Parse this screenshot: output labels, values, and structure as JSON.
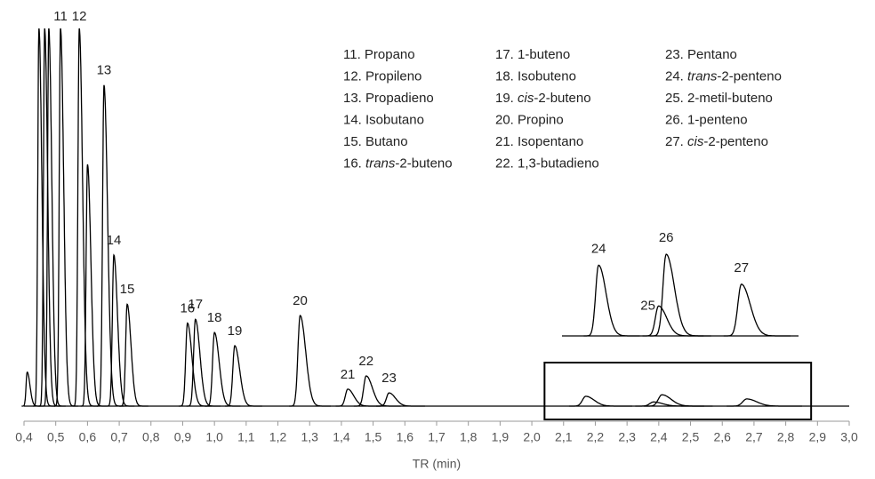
{
  "chart_data": {
    "type": "line",
    "x_label": "TR (min)",
    "color": "#000000",
    "xlim": [
      0.4,
      3.0
    ],
    "ylim": [
      0,
      100
    ],
    "xticks": [
      {
        "value": 0.4,
        "label": "0,4"
      },
      {
        "value": 0.5,
        "label": "0,5"
      },
      {
        "value": 0.6,
        "label": "0,6"
      },
      {
        "value": 0.7,
        "label": "0,7"
      },
      {
        "value": 0.8,
        "label": "0,8"
      },
      {
        "value": 0.9,
        "label": "0,9"
      },
      {
        "value": 1.0,
        "label": "1,0"
      },
      {
        "value": 1.1,
        "label": "1,1"
      },
      {
        "value": 1.2,
        "label": "1,2"
      },
      {
        "value": 1.3,
        "label": "1,3"
      },
      {
        "value": 1.4,
        "label": "1,4"
      },
      {
        "value": 1.5,
        "label": "1,5"
      },
      {
        "value": 1.6,
        "label": "1,6"
      },
      {
        "value": 1.7,
        "label": "1,7"
      },
      {
        "value": 1.8,
        "label": "1,8"
      },
      {
        "value": 1.9,
        "label": "1,9"
      },
      {
        "value": 2.0,
        "label": "2,0"
      },
      {
        "value": 2.1,
        "label": "2,1"
      },
      {
        "value": 2.2,
        "label": "2,2"
      },
      {
        "value": 2.3,
        "label": "2,3"
      },
      {
        "value": 2.4,
        "label": "2,4"
      },
      {
        "value": 2.5,
        "label": "2,5"
      },
      {
        "value": 2.6,
        "label": "2,6"
      },
      {
        "value": 2.7,
        "label": "2,7"
      },
      {
        "value": 2.8,
        "label": "2,8"
      },
      {
        "value": 2.9,
        "label": "2,9"
      },
      {
        "value": 3.0,
        "label": "3,0"
      }
    ],
    "peaks": {
      "x": [
        0.41,
        0.447,
        0.465,
        0.478,
        0.515,
        0.574,
        0.6,
        0.652,
        0.683,
        0.725,
        0.915,
        0.94,
        1.0,
        1.064,
        1.27,
        1.42,
        1.478,
        1.55,
        2.17,
        2.383,
        2.41,
        2.677
      ],
      "values": [
        9,
        100,
        100,
        100,
        100,
        100,
        64,
        85,
        40,
        27,
        22,
        23,
        19.5,
        16,
        24,
        4.5,
        8,
        3.5,
        2.6,
        1.1,
        3.0,
        1.9
      ],
      "labels": [
        null,
        null,
        null,
        null,
        "11",
        "12",
        null,
        "13",
        "14",
        "15",
        "16",
        "17",
        "18",
        "19",
        "20",
        "21",
        "22",
        "23",
        "24",
        "25",
        "26",
        "27"
      ]
    },
    "inset": {
      "xlim": [
        2.04,
        2.88
      ],
      "ylim": [
        0,
        3.2
      ]
    },
    "legend": [
      "11. Propano",
      "12. Propileno",
      "13. Propadieno",
      "14. Isobutano",
      "15. Butano",
      "16. trans-2-buteno",
      "17. 1-buteno",
      "18. Isobuteno",
      "19. cis-2-buteno",
      "20. Propino",
      "21. Isopentano",
      "22. 1,3-butadieno",
      "23. Pentano",
      "24. trans-2-penteno",
      "25. 2-metil-buteno",
      "26. 1-penteno",
      "27. cis-2-penteno"
    ]
  }
}
